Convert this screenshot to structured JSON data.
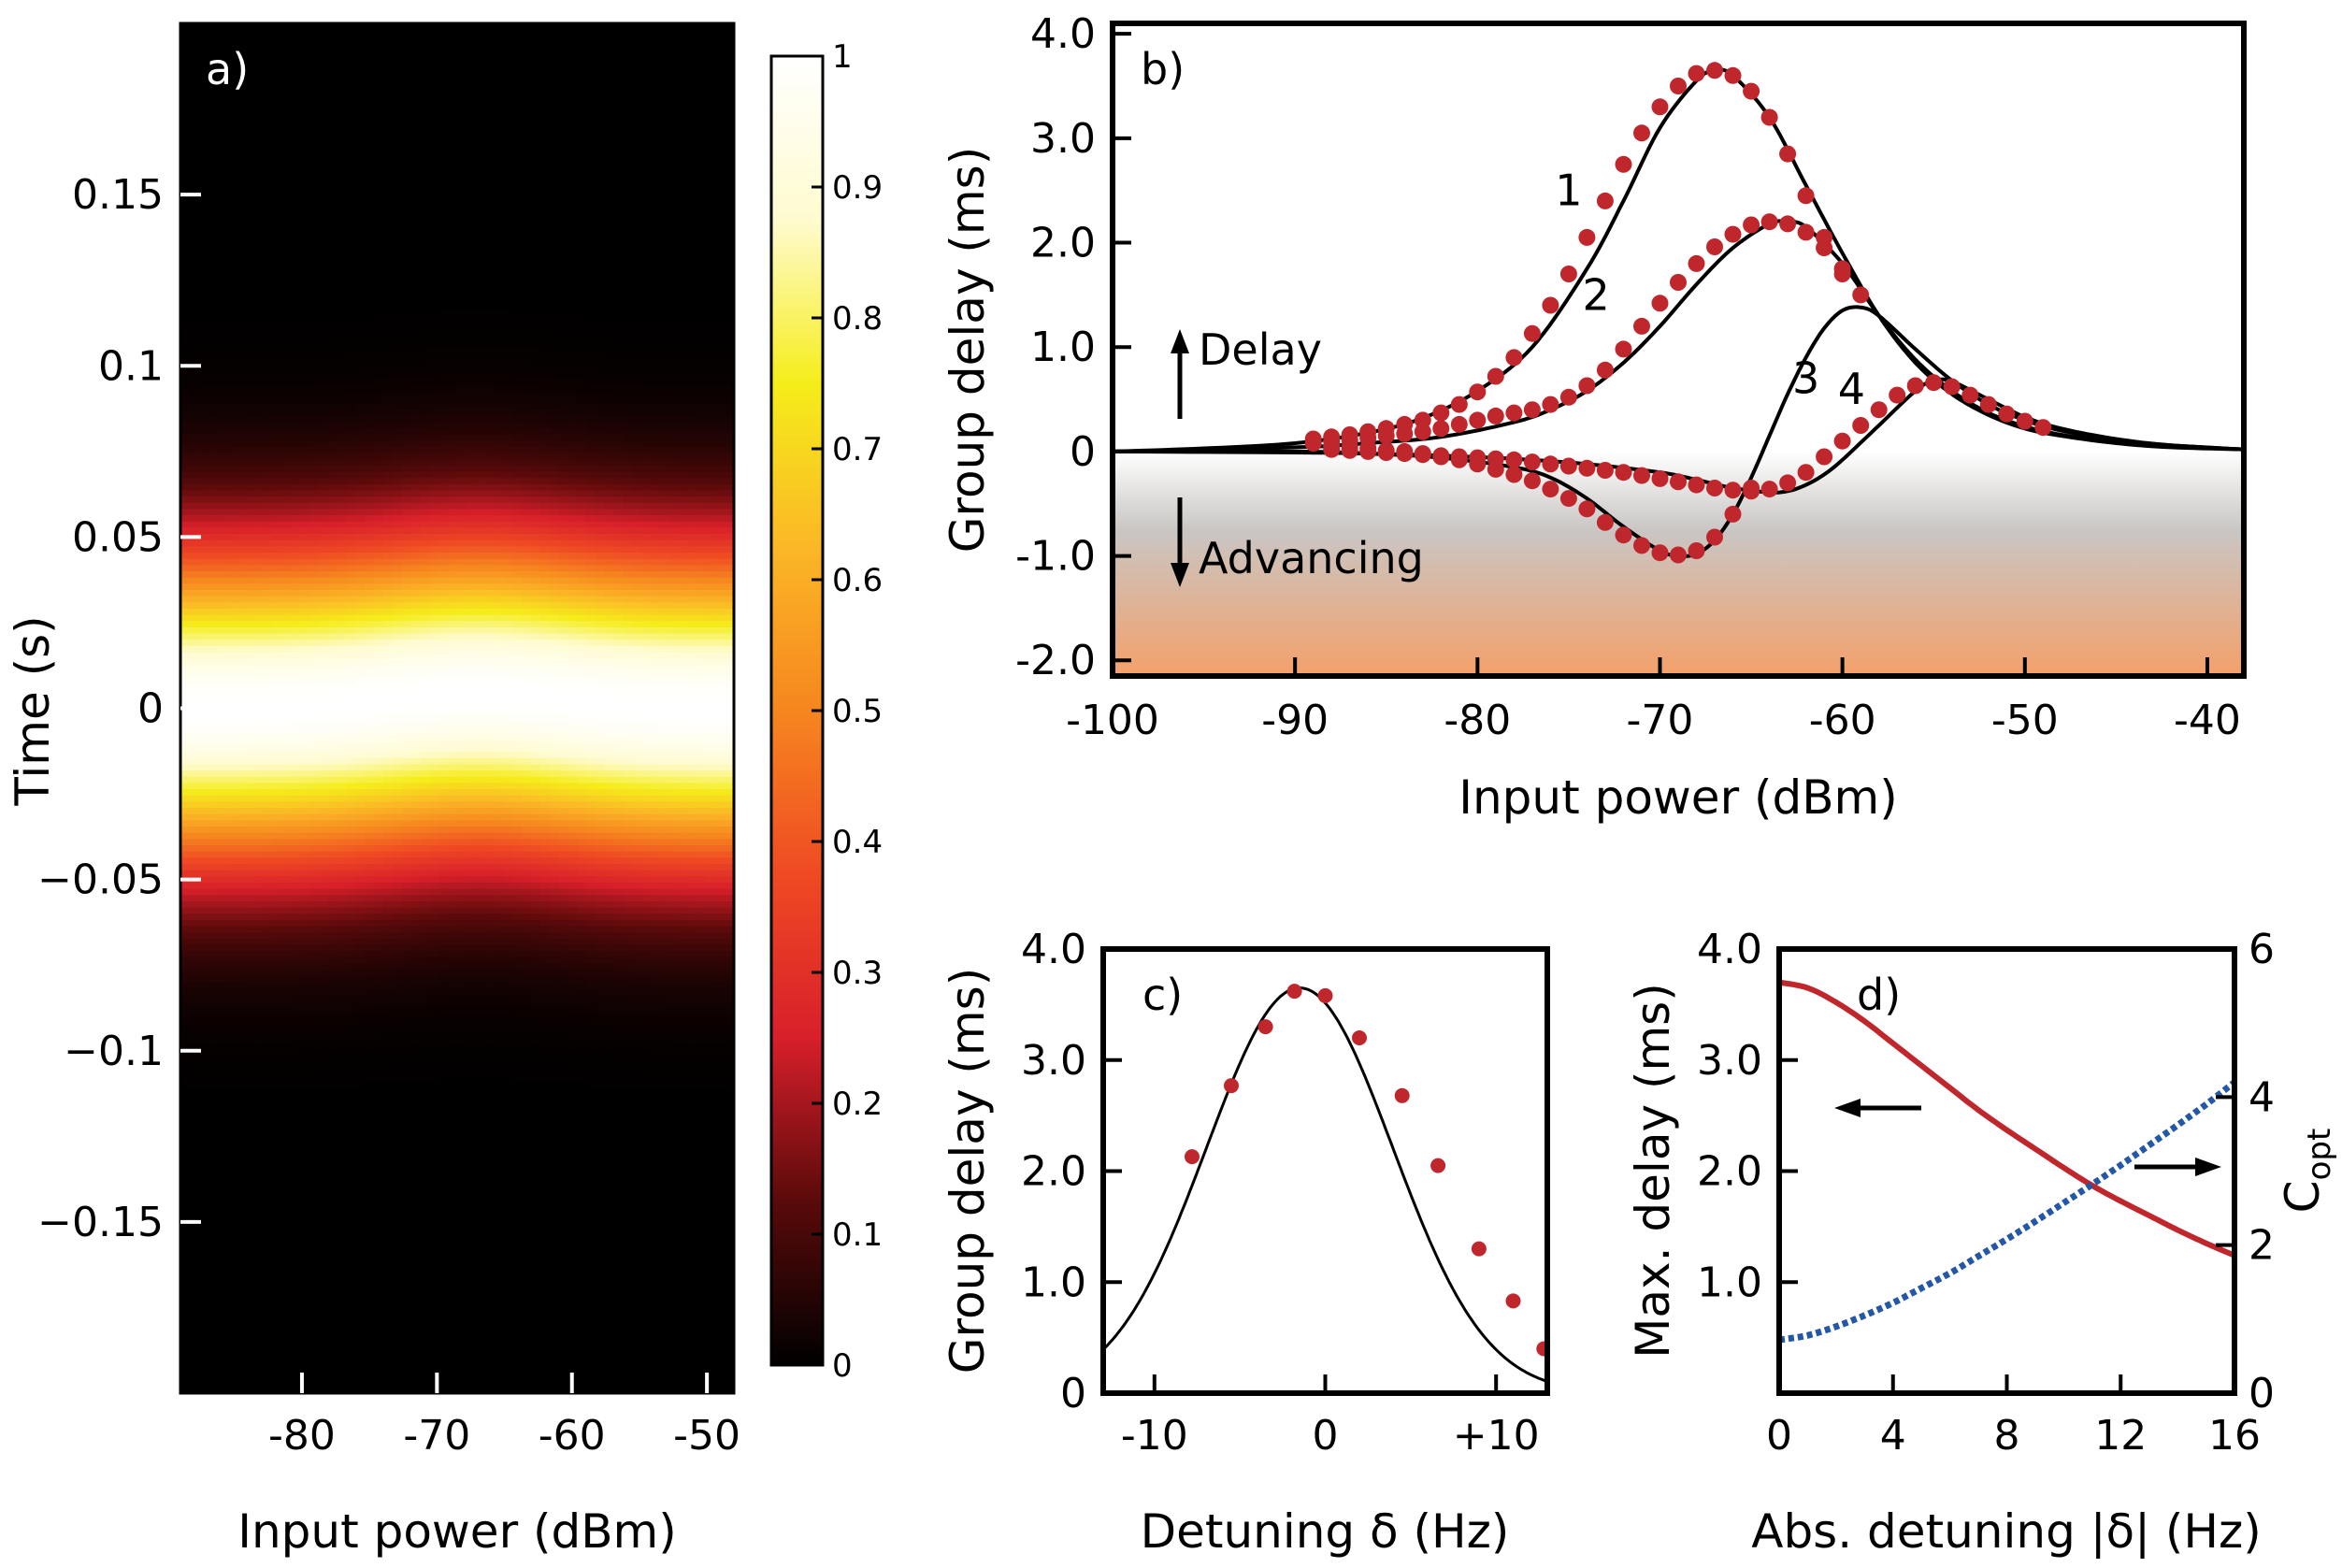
{
  "chart_data": [
    {
      "id": "a",
      "type": "heatmap",
      "panel_label": "a)",
      "xlabel": "Input power (dBm)",
      "ylabel": "Time (s)",
      "xlim": [
        -89,
        -48
      ],
      "ylim": [
        -0.2,
        0.2
      ],
      "xticks": [
        -80,
        -70,
        -60,
        -50
      ],
      "xticklabels": [
        "-80",
        "-70",
        "-60",
        "-50"
      ],
      "yticks": [
        0.15,
        0.1,
        0.05,
        0,
        -0.05,
        -0.1,
        -0.15
      ],
      "yticklabels": [
        "0.15",
        "0.1",
        "0.05",
        "0",
        "−0.05",
        "−0.1",
        "−0.15"
      ],
      "pulse_width_s": 0.045,
      "peak_shift_max_s": 0.004,
      "peak_shift_center_dBm": -67,
      "colorbar": {
        "ticks": [
          0,
          0.1,
          0.2,
          0.3,
          0.4,
          0.5,
          0.6,
          0.7,
          0.8,
          0.9,
          1
        ],
        "ticklabels": [
          "0",
          "0.1",
          "0.2",
          "0.3",
          "0.4",
          "0.5",
          "0.6",
          "0.7",
          "0.8",
          "0.9",
          "1"
        ],
        "colormap": [
          "#000000",
          "#5a0a0a",
          "#d81f2a",
          "#ef4a23",
          "#f6861f",
          "#fbb726",
          "#f5ed1a",
          "#fffbd0",
          "#ffffff"
        ]
      }
    },
    {
      "id": "b",
      "type": "line",
      "panel_label": "b)",
      "xlabel": "Input power (dBm)",
      "ylabel": "Group delay (ms)",
      "xlim": [
        -100,
        -38
      ],
      "ylim": [
        -2.15,
        4.1
      ],
      "xticks": [
        -100,
        -90,
        -80,
        -70,
        -60,
        -50,
        -40
      ],
      "xticklabels": [
        "-100",
        "-90",
        "-80",
        "-70",
        "-60",
        "-50",
        "-40"
      ],
      "yticks": [
        4,
        3,
        2,
        1,
        0,
        -1,
        -2
      ],
      "yticklabels": [
        "4.0",
        "3.0",
        "2.0",
        "1.0",
        "0",
        "-1.0",
        "-2.0"
      ],
      "annotations": {
        "delay": "Delay",
        "advancing": "Advancing"
      },
      "shading": {
        "from_ms": 0,
        "to_ms": -2.15,
        "top_color": "#ffffff",
        "bottom_color": "#f4a06a"
      },
      "series": [
        {
          "name": "1",
          "label_at": [
            -75,
            2.5
          ],
          "line": {
            "x": [
              -100,
              -95,
              -90,
              -86,
              -83,
              -80,
              -77,
              -74,
              -72,
              -70,
              -68,
              -67,
              -66,
              -64,
              -62,
              -60,
              -58,
              -56,
              -54,
              -52,
              -50,
              -48,
              -45,
              -42,
              -38
            ],
            "y": [
              0.0,
              0.03,
              0.08,
              0.18,
              0.32,
              0.58,
              1.0,
              1.75,
              2.4,
              3.1,
              3.55,
              3.65,
              3.6,
              3.2,
              2.55,
              1.9,
              1.3,
              0.85,
              0.55,
              0.35,
              0.22,
              0.15,
              0.08,
              0.04,
              0.02
            ]
          },
          "points": {
            "x": [
              -89,
              -88,
              -87,
              -86,
              -85,
              -84,
              -83,
              -82,
              -81,
              -80,
              -79,
              -78,
              -77,
              -76,
              -75,
              -74,
              -73,
              -72,
              -71,
              -70,
              -69,
              -68,
              -67,
              -66,
              -65,
              -64,
              -63,
              -62,
              -61,
              -60
            ],
            "y": [
              0.12,
              0.14,
              0.16,
              0.19,
              0.22,
              0.26,
              0.3,
              0.37,
              0.45,
              0.57,
              0.72,
              0.9,
              1.13,
              1.4,
              1.7,
              2.05,
              2.4,
              2.75,
              3.05,
              3.3,
              3.5,
              3.62,
              3.65,
              3.6,
              3.45,
              3.2,
              2.85,
              2.45,
              2.05,
              1.7
            ]
          }
        },
        {
          "name": "2",
          "label_at": [
            -73.5,
            1.5
          ],
          "line": {
            "x": [
              -100,
              -90,
              -86,
              -82,
              -78,
              -76,
              -74,
              -72,
              -70,
              -68,
              -66,
              -64,
              -63,
              -62,
              -60,
              -58,
              -56,
              -54,
              -52,
              -50,
              -48,
              -45,
              -42,
              -38
            ],
            "y": [
              0.0,
              0.04,
              0.08,
              0.14,
              0.28,
              0.4,
              0.58,
              0.85,
              1.2,
              1.6,
              1.95,
              2.18,
              2.2,
              2.15,
              1.8,
              1.3,
              0.88,
              0.58,
              0.37,
              0.24,
              0.16,
              0.09,
              0.05,
              0.02
            ]
          },
          "points": {
            "x": [
              -89,
              -88,
              -87,
              -86,
              -85,
              -84,
              -83,
              -82,
              -81,
              -80,
              -79,
              -78,
              -77,
              -76,
              -75,
              -74,
              -73,
              -72,
              -71,
              -70,
              -69,
              -68,
              -67,
              -66,
              -65,
              -64,
              -63,
              -62,
              -61,
              -60,
              -59
            ],
            "y": [
              0.08,
              0.1,
              0.11,
              0.13,
              0.15,
              0.17,
              0.19,
              0.22,
              0.26,
              0.3,
              0.34,
              0.37,
              0.4,
              0.45,
              0.52,
              0.63,
              0.78,
              0.98,
              1.2,
              1.42,
              1.62,
              1.8,
              1.96,
              2.08,
              2.17,
              2.2,
              2.18,
              2.1,
              1.95,
              1.75,
              1.5
            ]
          }
        },
        {
          "name": "3",
          "label_at": [
            -62,
            0.7
          ],
          "line": {
            "x": [
              -100,
              -90,
              -86,
              -82,
              -78,
              -76,
              -74,
              -72,
              -70,
              -69,
              -68,
              -67,
              -66,
              -65,
              -64,
              -63,
              -62,
              -61,
              -60,
              -59,
              -58,
              -56,
              -54,
              -52,
              -50,
              -48,
              -45,
              -42,
              -38
            ],
            "y": [
              0.0,
              0.0,
              -0.02,
              -0.06,
              -0.15,
              -0.25,
              -0.45,
              -0.72,
              -0.95,
              -1.0,
              -0.98,
              -0.85,
              -0.6,
              -0.25,
              0.15,
              0.55,
              0.9,
              1.18,
              1.35,
              1.38,
              1.3,
              0.98,
              0.68,
              0.45,
              0.3,
              0.2,
              0.11,
              0.06,
              0.02
            ]
          },
          "points": {
            "x": [
              -88,
              -87,
              -86,
              -85,
              -84,
              -83,
              -82,
              -81,
              -80,
              -79,
              -78,
              -77,
              -76,
              -75,
              -74,
              -73,
              -72,
              -71,
              -70,
              -69,
              -68,
              -67,
              -66,
              -65
            ],
            "y": [
              0.05,
              0.04,
              0.03,
              0.01,
              0.0,
              -0.02,
              -0.05,
              -0.08,
              -0.12,
              -0.17,
              -0.22,
              -0.28,
              -0.36,
              -0.45,
              -0.55,
              -0.68,
              -0.8,
              -0.9,
              -0.97,
              -0.99,
              -0.95,
              -0.82,
              -0.6,
              -0.35
            ]
          }
        },
        {
          "name": "4",
          "label_at": [
            -59.5,
            0.6
          ],
          "line": {
            "x": [
              -100,
              -90,
              -86,
              -82,
              -78,
              -74,
              -70,
              -68,
              -66,
              -64,
              -63,
              -62,
              -61,
              -60,
              -58,
              -56,
              -55,
              -54,
              -52,
              -50,
              -48,
              -45,
              -42,
              -38
            ],
            "y": [
              0.0,
              -0.01,
              -0.02,
              -0.04,
              -0.07,
              -0.12,
              -0.2,
              -0.27,
              -0.35,
              -0.39,
              -0.38,
              -0.32,
              -0.22,
              -0.08,
              0.25,
              0.58,
              0.68,
              0.67,
              0.5,
              0.33,
              0.22,
              0.12,
              0.06,
              0.02
            ]
          },
          "points": {
            "x": [
              -88,
              -87,
              -86,
              -85,
              -84,
              -83,
              -82,
              -81,
              -80,
              -79,
              -78,
              -77,
              -76,
              -75,
              -74,
              -73,
              -72,
              -71,
              -70,
              -69,
              -68,
              -67,
              -66,
              -65,
              -64,
              -63,
              -62,
              -61,
              -60,
              -59,
              -58,
              -57,
              -56,
              -55,
              -54,
              -53,
              -52,
              -51,
              -50,
              -49
            ],
            "y": [
              0.02,
              0.01,
              0.0,
              -0.01,
              -0.02,
              -0.03,
              -0.04,
              -0.05,
              -0.06,
              -0.07,
              -0.08,
              -0.1,
              -0.12,
              -0.14,
              -0.16,
              -0.18,
              -0.2,
              -0.23,
              -0.26,
              -0.29,
              -0.32,
              -0.35,
              -0.37,
              -0.38,
              -0.36,
              -0.3,
              -0.2,
              -0.05,
              0.1,
              0.25,
              0.4,
              0.54,
              0.63,
              0.66,
              0.62,
              0.54,
              0.45,
              0.36,
              0.29,
              0.23
            ]
          }
        }
      ]
    },
    {
      "id": "c",
      "type": "line",
      "panel_label": "c)",
      "xlabel": "Detuning δ (Hz)",
      "ylabel": "Group delay (ms)",
      "xlim": [
        -13,
        13
      ],
      "ylim": [
        0,
        4
      ],
      "xticks": [
        -10,
        0,
        10
      ],
      "xticklabels": [
        "-10",
        "0",
        "+10"
      ],
      "yticks": [
        1,
        2,
        3,
        4
      ],
      "yticklabels": [
        "1.0",
        "2.0",
        "3.0",
        "4.0"
      ],
      "curve_peak_ms": 3.65,
      "curve_center_hz": -1.5,
      "curve_sigma_hz": 7.7,
      "points": {
        "x": [
          -7.8,
          -5.5,
          -3.5,
          -1.8,
          0,
          2,
          4.5,
          6.6,
          9,
          11,
          12.8
        ],
        "y": [
          2.13,
          2.77,
          3.3,
          3.62,
          3.58,
          3.2,
          2.68,
          2.05,
          1.3,
          0.83,
          0.4
        ]
      }
    },
    {
      "id": "d",
      "type": "line",
      "panel_label": "d)",
      "xlabel": "Abs. detuning |δ| (Hz)",
      "ylabel": "Max. delay (ms)",
      "ylabel_right": "C",
      "ylabel_right_sub": "opt",
      "xlim": [
        0,
        16
      ],
      "ylim": [
        0,
        4
      ],
      "ylim_right": [
        0,
        6
      ],
      "xticks": [
        0,
        4,
        8,
        12,
        16
      ],
      "xticklabels": [
        "0",
        "4",
        "8",
        "12",
        "16"
      ],
      "yticks": [
        1,
        2,
        3,
        4
      ],
      "yticklabels": [
        "1.0",
        "2.0",
        "3.0",
        "4.0"
      ],
      "yticks_right": [
        0,
        2,
        4,
        6
      ],
      "yticklabels_right": [
        "0",
        "2",
        "4",
        "6"
      ],
      "series": [
        {
          "name": "Max. delay",
          "axis": "left",
          "color": "#c0272d",
          "x": [
            0,
            1,
            2,
            3,
            4,
            5,
            6,
            7,
            8,
            9,
            10,
            11,
            12,
            13,
            14,
            15,
            16
          ],
          "y": [
            3.7,
            3.65,
            3.52,
            3.35,
            3.15,
            2.95,
            2.75,
            2.55,
            2.37,
            2.2,
            2.03,
            1.87,
            1.73,
            1.6,
            1.47,
            1.35,
            1.24
          ]
        },
        {
          "name": "C_opt",
          "axis": "right",
          "color": "#2457a8",
          "dashed": true,
          "x": [
            0,
            1,
            2,
            3,
            4,
            5,
            6,
            7,
            8,
            9,
            10,
            11,
            12,
            13,
            14,
            15,
            16
          ],
          "y": [
            0.72,
            0.78,
            0.9,
            1.05,
            1.22,
            1.42,
            1.62,
            1.85,
            2.08,
            2.32,
            2.57,
            2.82,
            3.08,
            3.35,
            3.62,
            3.9,
            4.2
          ]
        }
      ]
    }
  ]
}
